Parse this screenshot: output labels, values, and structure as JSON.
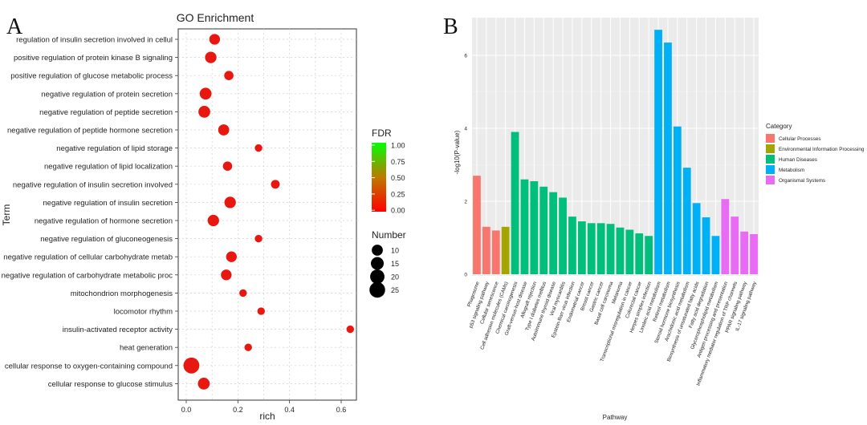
{
  "panels": {
    "a": "A",
    "b": "B"
  },
  "chart_data": [
    {
      "type": "scatter",
      "title": "GO Enrichment",
      "xlabel": "rich",
      "ylabel": "Term",
      "xlim": [
        0,
        0.65
      ],
      "xticks": [
        "0.0",
        "0.2",
        "0.4",
        "0.6"
      ],
      "grid": true,
      "terms": [
        "regulation of insulin secretion involved in cellul",
        "positive regulation of protein kinase B signaling",
        "positive regulation of glucose metabolic process",
        "negative regulation of protein secretion",
        "negative regulation of peptide secretion",
        "negative regulation of peptide hormone secretion",
        "negative regulation of lipid storage",
        "negative regulation of lipid localization",
        "negative regulation of insulin secretion involved",
        "negative regulation of insulin secretion",
        "negative regulation of hormone secretion",
        "negative regulation of gluconeogenesis",
        "negative regulation of cellular carbohydrate metab",
        "negative regulation of carbohydrate metabolic proc",
        "mitochondrion morphogenesis",
        "locomotor rhythm",
        "insulin-activated receptor activity",
        "heat generation",
        "cellular response to oxygen-containing compound",
        "cellular response to glucose stimulus"
      ],
      "rich": [
        0.11,
        0.095,
        0.165,
        0.075,
        0.07,
        0.145,
        0.28,
        0.16,
        0.345,
        0.17,
        0.105,
        0.28,
        0.175,
        0.155,
        0.22,
        0.29,
        0.635,
        0.24,
        0.02,
        0.068
      ],
      "number": [
        9,
        11,
        6,
        12,
        12,
        10,
        3,
        6,
        5,
        11,
        11,
        3,
        9,
        9,
        3,
        3,
        3,
        3,
        26,
        12
      ],
      "color_legend": {
        "title": "FDR",
        "ticks": [
          "1.00",
          "0.75",
          "0.50",
          "0.25",
          "0.00"
        ],
        "low_color": "#ff0000",
        "high_color": "#00ff00"
      },
      "size_legend": {
        "title": "Number",
        "values": [
          10,
          15,
          20,
          25
        ]
      },
      "point_color": "#e8170f"
    },
    {
      "type": "bar",
      "xlabel": "Pathway",
      "ylabel": "-log10(P-value)",
      "ylim": [
        0,
        6.8
      ],
      "yticks": [
        "0",
        "2",
        "4",
        "6"
      ],
      "categories": [
        "Phagosome",
        "p53 signaling pathway",
        "Cellular senescence",
        "Cell adhesion molecules (CAMs)",
        "Chemical carcinogenesis",
        "Graft-versus-host disease",
        "Allograft rejection",
        "Type I diabetes mellitus",
        "Autoimmune thyroid disease",
        "Viral myocarditis",
        "Epstein-Barr virus infection",
        "Endometrial cancer",
        "Breast cancer",
        "Gastric cancer",
        "Basal cell carcinoma",
        "Melanoma",
        "Transcriptional misregulation in cancer",
        "Colorectal cancer",
        "Herpes simplex infection",
        "Linoleic acid metabolism",
        "Retinol metabolism",
        "Steroid hormone biosynthesis",
        "Arachidonic acid metabolism",
        "Biosynthesis of unsaturated fatty acids",
        "Fatty acid degradation",
        "Glycerophospholipid metabolism",
        "Antigen processing and presentation",
        "Inflammatory mediator regulation of TRP channels",
        "PPAR signaling pathway",
        "IL-17 signaling pathway"
      ],
      "values": [
        2.7,
        1.3,
        1.2,
        1.3,
        3.9,
        2.6,
        2.55,
        2.4,
        2.25,
        2.1,
        1.58,
        1.45,
        1.4,
        1.4,
        1.38,
        1.28,
        1.22,
        1.12,
        1.05,
        6.7,
        6.35,
        4.05,
        2.92,
        1.95,
        1.56,
        1.05,
        2.06,
        1.58,
        1.17,
        1.1
      ],
      "category_of": [
        0,
        0,
        0,
        1,
        2,
        2,
        2,
        2,
        2,
        2,
        2,
        2,
        2,
        2,
        2,
        2,
        2,
        2,
        2,
        3,
        3,
        3,
        3,
        3,
        3,
        3,
        4,
        4,
        4,
        4
      ],
      "legend": {
        "title": "Category",
        "entries": [
          {
            "name": "Cellular Processes",
            "color": "#f8766d"
          },
          {
            "name": "Environmental Information Processing",
            "color": "#a3a500"
          },
          {
            "name": "Human Diseases",
            "color": "#00bf7d"
          },
          {
            "name": "Metabolism",
            "color": "#00b0f6"
          },
          {
            "name": "Organismal Systems",
            "color": "#e76bf3"
          }
        ]
      },
      "panel_bg": "#ebebeb"
    }
  ]
}
